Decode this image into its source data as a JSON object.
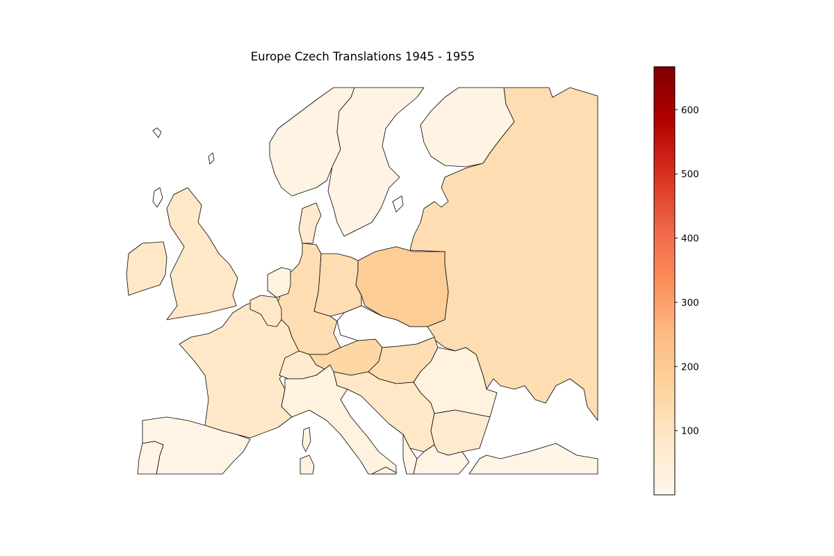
{
  "title": "Europe Czech Translations 1945 - 1955",
  "colorbar": {
    "min": 0,
    "max": 667,
    "ticks": [
      "100",
      "200",
      "300",
      "400",
      "500",
      "600"
    ],
    "tick_values": [
      100,
      200,
      300,
      400,
      500,
      600
    ],
    "colormap": "OrRd",
    "stops": [
      "#fff7ec",
      "#fee8c8",
      "#fdd49e",
      "#fdbb84",
      "#fc8d59",
      "#ef6548",
      "#d7301f",
      "#b30000",
      "#7f0000"
    ]
  },
  "regions": [
    {
      "name": "Norway",
      "value": 20
    },
    {
      "name": "Sweden",
      "value": 20
    },
    {
      "name": "Finland",
      "value": 20
    },
    {
      "name": "Soviet Union",
      "value": 130
    },
    {
      "name": "Poland",
      "value": 190
    },
    {
      "name": "East Germany",
      "value": 130
    },
    {
      "name": "West Germany",
      "value": 130
    },
    {
      "name": "Denmark",
      "value": 70
    },
    {
      "name": "United Kingdom",
      "value": 85
    },
    {
      "name": "Ireland",
      "value": 85
    },
    {
      "name": "France",
      "value": 85
    },
    {
      "name": "Belgium",
      "value": 85
    },
    {
      "name": "Netherlands",
      "value": 30
    },
    {
      "name": "Switzerland",
      "value": 70
    },
    {
      "name": "Austria",
      "value": 155
    },
    {
      "name": "Hungary",
      "value": 130
    },
    {
      "name": "Romania",
      "value": 30
    },
    {
      "name": "Yugoslavia",
      "value": 85
    },
    {
      "name": "Bulgaria",
      "value": 70
    },
    {
      "name": "Italy",
      "value": 30
    },
    {
      "name": "Spain",
      "value": 15
    },
    {
      "name": "Portugal",
      "value": 15
    },
    {
      "name": "Greece",
      "value": 15
    },
    {
      "name": "Turkey",
      "value": 15
    },
    {
      "name": "Albania",
      "value": 15
    },
    {
      "name": "Czechoslovakia",
      "value": 0
    }
  ]
}
